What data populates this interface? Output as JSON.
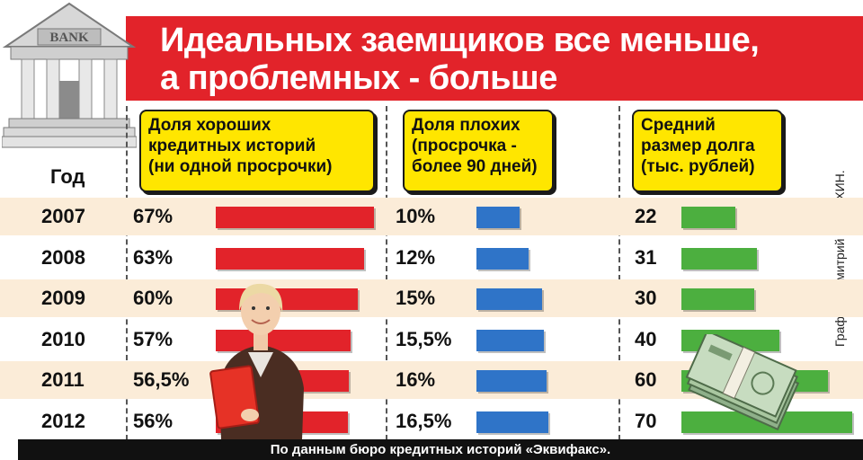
{
  "title": {
    "line1": "Идеальных заемщиков все меньше,",
    "line2": "а проблемных - больше"
  },
  "bank_sign": "BANK",
  "year_header": "Год",
  "columns": {
    "good": [
      "Доля хороших",
      "кредитных историй",
      "(ни одной просрочки)"
    ],
    "bad": [
      "Доля плохих",
      "(просрочка -",
      "более 90 дней)"
    ],
    "debt": [
      "Средний",
      "размер долга",
      "(тыс. рублей)"
    ]
  },
  "credit": "Графика: Дмитрий ПОЛУХИН.",
  "footer": "По данным бюро кредитных историй «Эквифакс».",
  "colors": {
    "title_band": "#e2232a",
    "header_box": "#ffe600",
    "good_bar": "#e2232a",
    "bad_bar": "#2f74c8",
    "debt_bar": "#4caf3f",
    "row_band": "#fbecd8"
  },
  "rows": [
    {
      "year": "2007",
      "good": "67%",
      "bad": "10%",
      "debt": "22"
    },
    {
      "year": "2008",
      "good": "63%",
      "bad": "12%",
      "debt": "31"
    },
    {
      "year": "2009",
      "good": "60%",
      "bad": "15%",
      "debt": "30"
    },
    {
      "year": "2010",
      "good": "57%",
      "bad": "15,5%",
      "debt": "40"
    },
    {
      "year": "2011",
      "good": "56,5%",
      "bad": "16%",
      "debt": "60"
    },
    {
      "year": "2012",
      "good": "56%",
      "bad": "16,5%",
      "debt": "70"
    }
  ],
  "chart_data": {
    "type": "bar",
    "categories": [
      "2007",
      "2008",
      "2009",
      "2010",
      "2011",
      "2012"
    ],
    "series": [
      {
        "name": "Доля хороших кредитных историй (ни одной просрочки)",
        "values": [
          67,
          63,
          60,
          57,
          56.5,
          56
        ]
      },
      {
        "name": "Доля плохих (просрочка - более 90 дней)",
        "values": [
          10,
          12,
          15,
          15.5,
          16,
          16.5
        ]
      },
      {
        "name": "Средний размер долга (тыс. рублей)",
        "values": [
          22,
          31,
          30,
          40,
          60,
          70
        ]
      }
    ],
    "title": "Идеальных заемщиков все меньше, а проблемных - больше",
    "xlabel": "Год",
    "ylabel": ""
  }
}
